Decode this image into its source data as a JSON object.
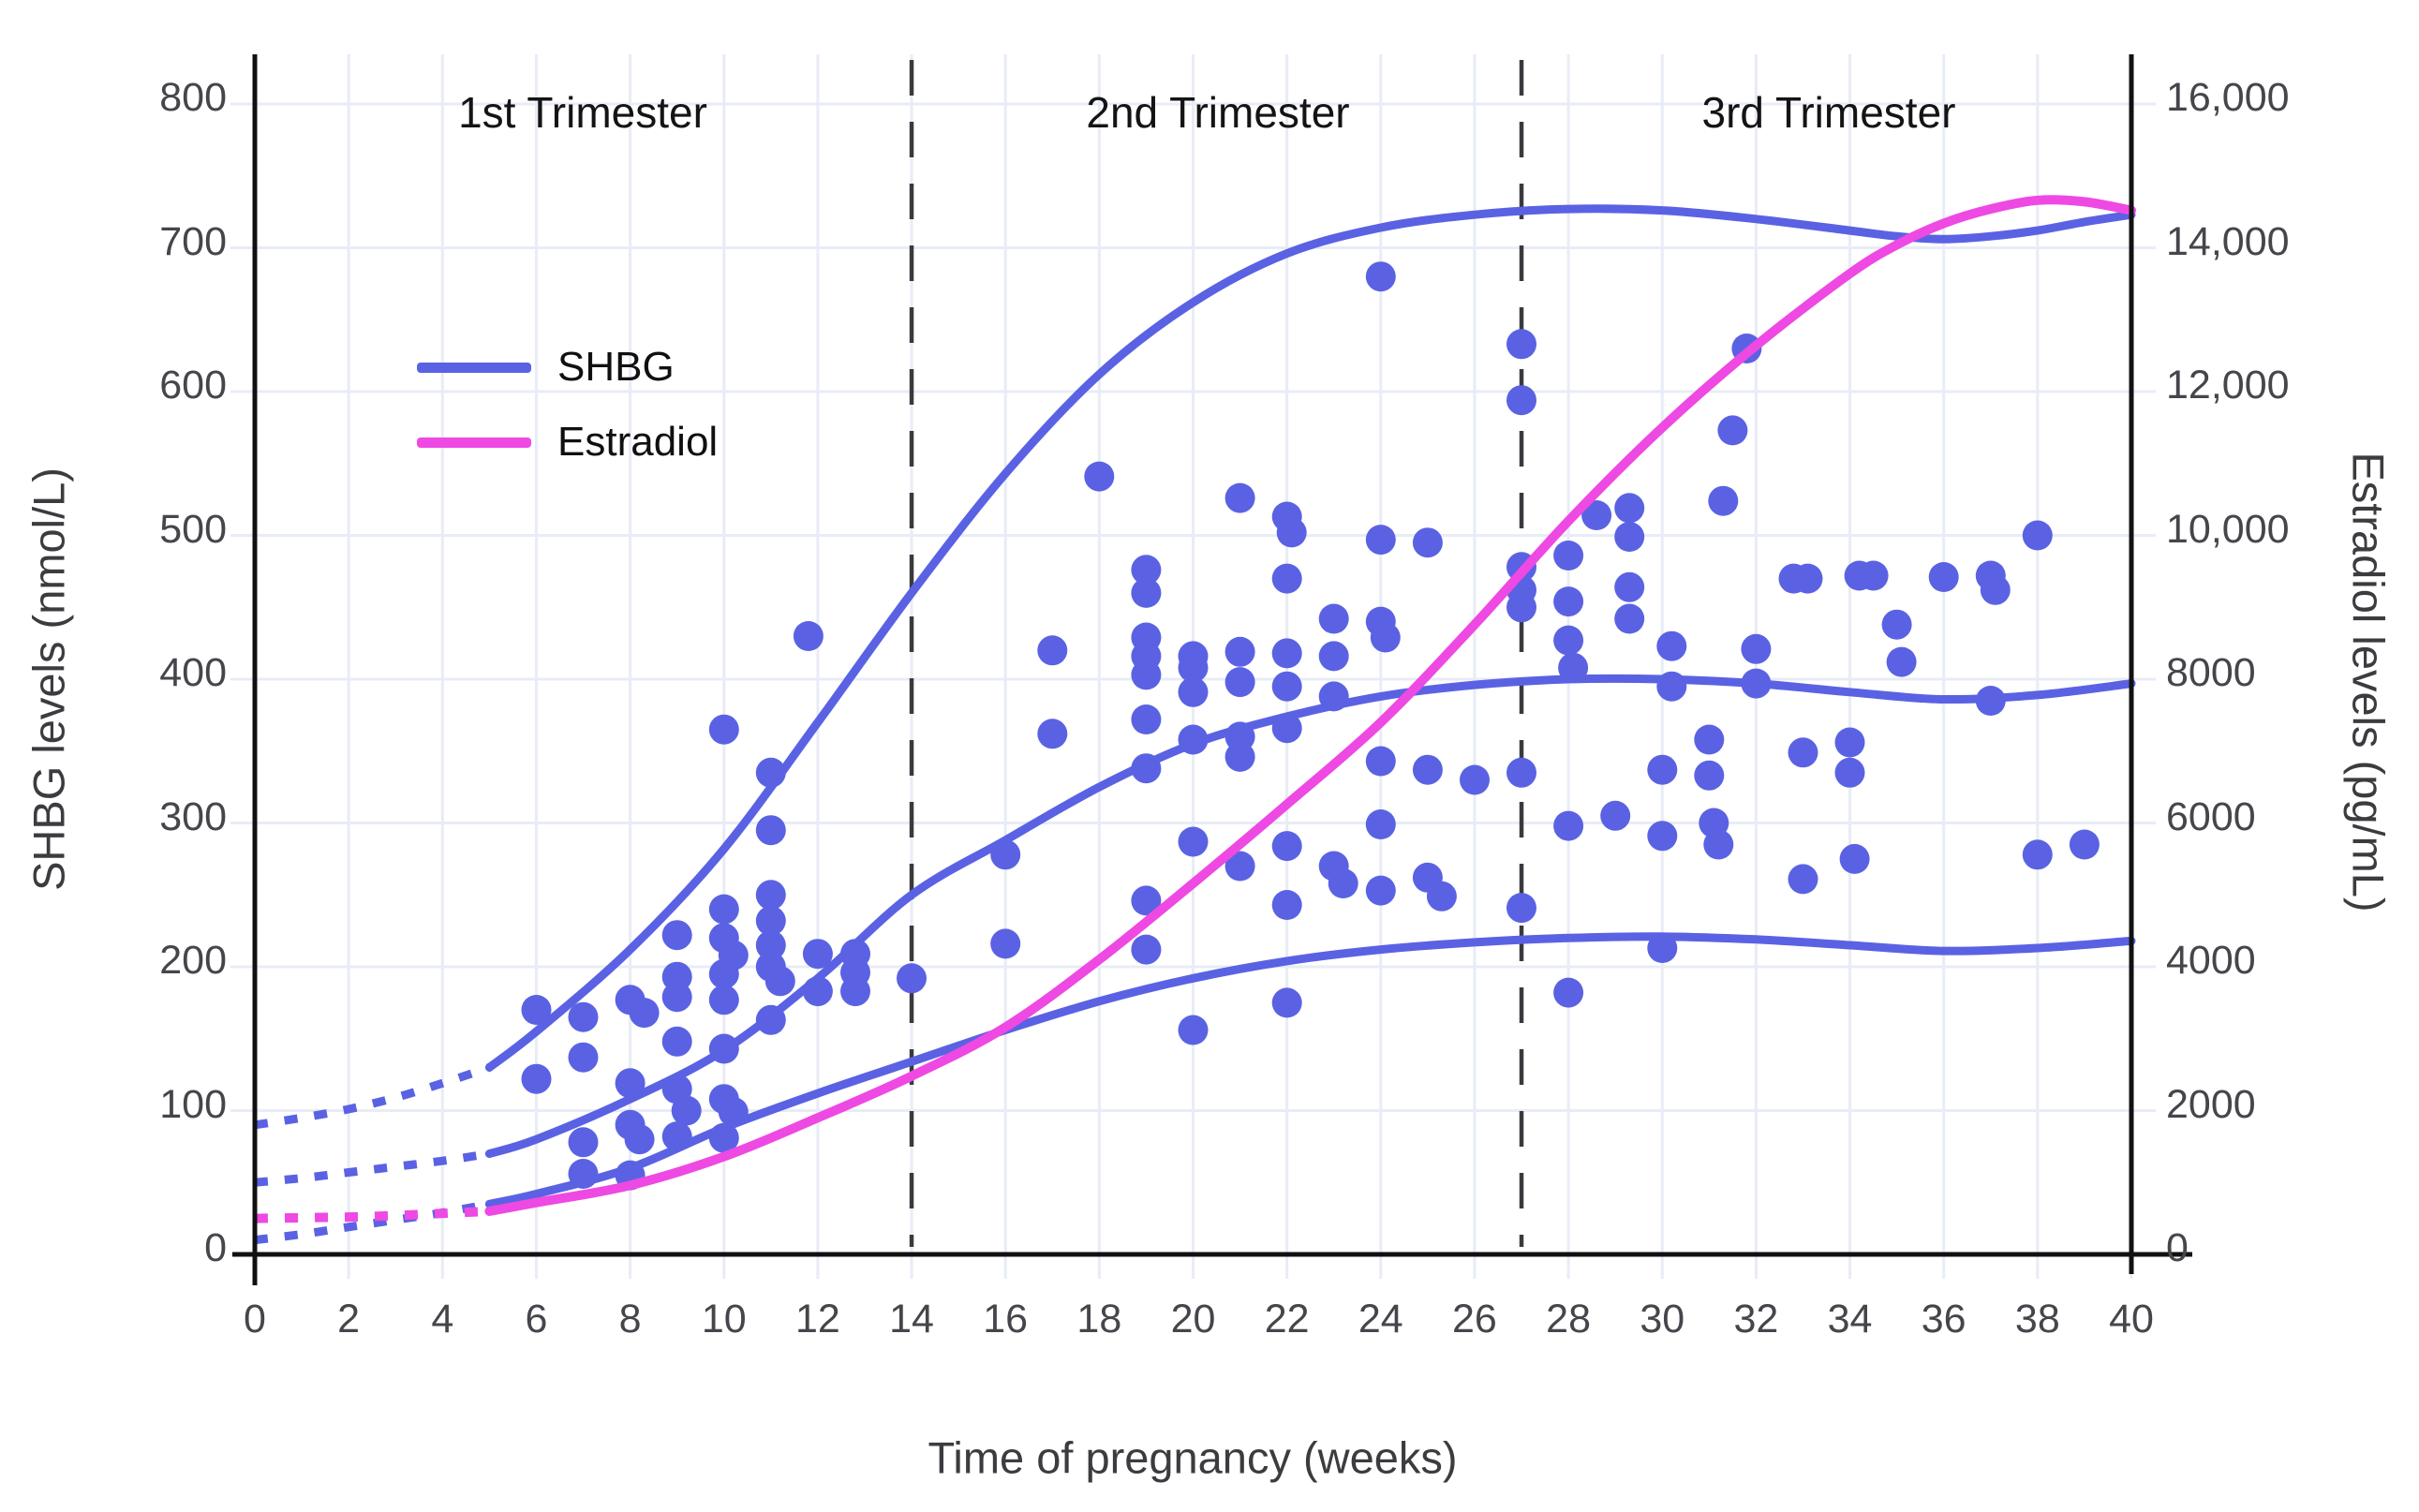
{
  "chart_data": {
    "type": "scatter+line",
    "x_axis": {
      "label": "Time of pregnancy (weeks)",
      "min": 0,
      "max": 40,
      "tick_step": 2,
      "tick_labels": [
        "0",
        "2",
        "4",
        "6",
        "8",
        "10",
        "12",
        "14",
        "16",
        "18",
        "20",
        "22",
        "24",
        "26",
        "28",
        "30",
        "32",
        "34",
        "36",
        "38",
        "40"
      ]
    },
    "y_axis_left": {
      "label": "SHBG levels (nmol/L)",
      "min": 0,
      "max": 800,
      "tick_step": 100,
      "tick_labels": [
        "0",
        "100",
        "200",
        "300",
        "400",
        "500",
        "600",
        "700",
        "800"
      ]
    },
    "y_axis_right": {
      "label": "Estradiol levels (pg/mL)",
      "min": 0,
      "max": 16000,
      "tick_step": 2000,
      "tick_labels": [
        "0",
        "2000",
        "4000",
        "6000",
        "8000",
        "10,000",
        "12,000",
        "14,000",
        "16,000"
      ],
      "pgml_per_nmoll": 20
    },
    "annotations": {
      "trimester_divider_weeks": [
        14,
        27
      ],
      "trimesters": [
        {
          "label": "1st Trimester",
          "center_week": 7
        },
        {
          "label": "2nd Trimester",
          "center_week": 20.5
        },
        {
          "label": "3rd Trimester",
          "center_week": 33.5
        }
      ]
    },
    "legend": [
      {
        "label": "SHBG",
        "color": "#5A62E3"
      },
      {
        "label": "Estradiol",
        "color": "#EE49E3"
      }
    ],
    "colors": {
      "shbg": "#5A62E3",
      "estradiol": "#EE49E3",
      "grid": "#E8ECF6",
      "axis": "#111111",
      "dashed_divider": "#3A3A3E",
      "tick_text": "#45454B",
      "title_text": "#3C3C40"
    },
    "series": [
      {
        "name": "SHBG upper reference limit",
        "axis": "left",
        "unit": "nmol/L",
        "color": "#5A62E3",
        "dotted_points": [
          [
            0,
            90
          ],
          [
            1,
            95
          ],
          [
            2,
            101
          ],
          [
            3,
            109
          ],
          [
            4,
            119
          ],
          [
            5,
            130
          ]
        ],
        "points": [
          [
            5,
            130
          ],
          [
            6,
            155
          ],
          [
            8,
            212
          ],
          [
            10,
            282
          ],
          [
            12,
            370
          ],
          [
            14,
            460
          ],
          [
            16,
            543
          ],
          [
            18,
            612
          ],
          [
            20,
            662
          ],
          [
            22,
            696
          ],
          [
            24,
            714
          ],
          [
            26,
            723
          ],
          [
            28,
            727
          ],
          [
            30,
            726
          ],
          [
            32,
            720
          ],
          [
            34,
            712
          ],
          [
            35,
            708
          ],
          [
            36,
            706
          ],
          [
            37,
            708
          ],
          [
            38,
            712
          ],
          [
            39,
            718
          ],
          [
            40,
            723
          ]
        ]
      },
      {
        "name": "SHBG median",
        "axis": "left",
        "unit": "nmol/L",
        "color": "#5A62E3",
        "dotted_points": [
          [
            0,
            50
          ],
          [
            1,
            53
          ],
          [
            2,
            57
          ],
          [
            3,
            61
          ],
          [
            4,
            65
          ],
          [
            5,
            70
          ]
        ],
        "points": [
          [
            5,
            70
          ],
          [
            6,
            80
          ],
          [
            8,
            108
          ],
          [
            10,
            142
          ],
          [
            12,
            192
          ],
          [
            14,
            250
          ],
          [
            16,
            288
          ],
          [
            18,
            325
          ],
          [
            20,
            355
          ],
          [
            22,
            374
          ],
          [
            24,
            388
          ],
          [
            26,
            396
          ],
          [
            28,
            400
          ],
          [
            30,
            400
          ],
          [
            32,
            397
          ],
          [
            34,
            391
          ],
          [
            36,
            386
          ],
          [
            38,
            389
          ],
          [
            40,
            397
          ]
        ]
      },
      {
        "name": "SHBG lower reference limit",
        "axis": "left",
        "unit": "nmol/L",
        "color": "#5A62E3",
        "dotted_points": [
          [
            0,
            10
          ],
          [
            1,
            14
          ],
          [
            2,
            19
          ],
          [
            3,
            24
          ],
          [
            4,
            29
          ],
          [
            5,
            35
          ]
        ],
        "points": [
          [
            5,
            35
          ],
          [
            6,
            42
          ],
          [
            8,
            60
          ],
          [
            10,
            88
          ],
          [
            12,
            112
          ],
          [
            14,
            134
          ],
          [
            16,
            156
          ],
          [
            18,
            176
          ],
          [
            20,
            192
          ],
          [
            22,
            204
          ],
          [
            24,
            212
          ],
          [
            26,
            217
          ],
          [
            28,
            220
          ],
          [
            30,
            221
          ],
          [
            32,
            219
          ],
          [
            34,
            215
          ],
          [
            36,
            211
          ],
          [
            38,
            213
          ],
          [
            40,
            218
          ]
        ]
      },
      {
        "name": "Estradiol",
        "axis": "right",
        "unit": "pg/mL",
        "color": "#EE49E3",
        "dotted_points": [
          [
            0,
            500
          ],
          [
            1,
            510
          ],
          [
            2,
            520
          ],
          [
            3,
            540
          ],
          [
            4,
            570
          ],
          [
            5,
            600
          ]
        ],
        "points": [
          [
            5,
            600
          ],
          [
            6,
            720
          ],
          [
            8,
            960
          ],
          [
            10,
            1360
          ],
          [
            12,
            1900
          ],
          [
            14,
            2480
          ],
          [
            16,
            3160
          ],
          [
            18,
            4100
          ],
          [
            20,
            5160
          ],
          [
            22,
            6260
          ],
          [
            24,
            7400
          ],
          [
            26,
            8760
          ],
          [
            28,
            10200
          ],
          [
            30,
            11500
          ],
          [
            32,
            12640
          ],
          [
            34,
            13640
          ],
          [
            35,
            14040
          ],
          [
            36,
            14340
          ],
          [
            37,
            14540
          ],
          [
            38,
            14660
          ],
          [
            39,
            14640
          ],
          [
            40,
            14520
          ]
        ]
      }
    ],
    "scatter": {
      "name": "SHBG individual observations",
      "axis": "left",
      "unit": "nmol/L",
      "color": "#5A62E3",
      "points": [
        [
          6,
          170
        ],
        [
          6,
          122
        ],
        [
          7,
          165
        ],
        [
          7,
          137
        ],
        [
          7,
          78
        ],
        [
          7,
          56
        ],
        [
          8,
          177
        ],
        [
          8.3,
          168
        ],
        [
          8,
          119
        ],
        [
          8,
          90
        ],
        [
          8.2,
          80
        ],
        [
          8,
          55
        ],
        [
          9,
          222
        ],
        [
          9,
          193
        ],
        [
          9,
          179
        ],
        [
          9,
          148
        ],
        [
          9,
          115
        ],
        [
          9.2,
          100
        ],
        [
          9,
          82
        ],
        [
          10,
          365
        ],
        [
          10,
          240
        ],
        [
          10,
          220
        ],
        [
          10.2,
          208
        ],
        [
          10,
          195
        ],
        [
          10,
          177
        ],
        [
          10,
          143
        ],
        [
          10,
          108
        ],
        [
          10.2,
          99
        ],
        [
          10,
          81
        ],
        [
          11,
          335
        ],
        [
          11,
          295
        ],
        [
          11,
          250
        ],
        [
          11,
          232
        ],
        [
          11,
          215
        ],
        [
          11,
          200
        ],
        [
          11.2,
          190
        ],
        [
          11,
          163
        ],
        [
          11.8,
          430
        ],
        [
          12,
          209
        ],
        [
          12,
          183
        ],
        [
          12.8,
          209
        ],
        [
          12.8,
          196
        ],
        [
          12.8,
          183
        ],
        [
          14,
          192
        ],
        [
          16,
          278
        ],
        [
          16,
          216
        ],
        [
          17,
          420
        ],
        [
          17,
          362
        ],
        [
          18,
          541
        ],
        [
          19,
          476
        ],
        [
          19,
          460
        ],
        [
          19,
          429
        ],
        [
          19,
          416
        ],
        [
          19,
          403
        ],
        [
          19,
          372
        ],
        [
          19,
          338
        ],
        [
          19,
          246
        ],
        [
          19,
          212
        ],
        [
          20,
          416
        ],
        [
          20,
          408
        ],
        [
          20,
          391
        ],
        [
          20,
          358
        ],
        [
          20,
          287
        ],
        [
          20,
          156
        ],
        [
          21,
          526
        ],
        [
          21,
          419
        ],
        [
          21,
          398
        ],
        [
          21,
          360
        ],
        [
          21,
          346
        ],
        [
          21,
          270
        ],
        [
          22,
          513
        ],
        [
          22.1,
          502
        ],
        [
          22,
          470
        ],
        [
          22,
          418
        ],
        [
          22,
          395
        ],
        [
          22,
          366
        ],
        [
          22,
          284
        ],
        [
          22,
          243
        ],
        [
          22,
          175
        ],
        [
          23,
          442
        ],
        [
          23,
          416
        ],
        [
          23,
          388
        ],
        [
          23,
          270
        ],
        [
          23.2,
          258
        ],
        [
          24,
          680
        ],
        [
          24,
          497
        ],
        [
          24,
          440
        ],
        [
          24.1,
          429
        ],
        [
          24,
          343
        ],
        [
          24,
          299
        ],
        [
          24,
          253
        ],
        [
          25,
          495
        ],
        [
          25,
          337
        ],
        [
          25,
          262
        ],
        [
          25.3,
          249
        ],
        [
          26,
          330
        ],
        [
          27,
          633
        ],
        [
          27,
          594
        ],
        [
          27,
          478
        ],
        [
          27,
          462
        ],
        [
          27,
          450
        ],
        [
          27,
          335
        ],
        [
          27,
          241
        ],
        [
          28,
          486
        ],
        [
          28,
          454
        ],
        [
          28,
          427
        ],
        [
          28.1,
          408
        ],
        [
          28,
          298
        ],
        [
          28,
          182
        ],
        [
          28.6,
          514
        ],
        [
          29.3,
          519
        ],
        [
          29.3,
          499
        ],
        [
          29.3,
          464
        ],
        [
          29.3,
          442
        ],
        [
          29,
          305
        ],
        [
          30.2,
          423
        ],
        [
          30.2,
          395
        ],
        [
          30,
          337
        ],
        [
          30,
          291
        ],
        [
          30,
          213
        ],
        [
          31,
          358
        ],
        [
          31,
          333
        ],
        [
          31.1,
          300
        ],
        [
          31.2,
          285
        ],
        [
          31.3,
          524
        ],
        [
          31.5,
          573
        ],
        [
          31.8,
          630
        ],
        [
          32,
          421
        ],
        [
          32,
          397
        ],
        [
          32.8,
          470
        ],
        [
          33.1,
          470
        ],
        [
          33,
          349
        ],
        [
          33,
          261
        ],
        [
          34,
          356
        ],
        [
          34,
          335
        ],
        [
          34.1,
          275
        ],
        [
          34.2,
          472
        ],
        [
          34.5,
          472
        ],
        [
          35,
          438
        ],
        [
          35.1,
          412
        ],
        [
          36,
          471
        ],
        [
          37,
          472
        ],
        [
          37.1,
          462
        ],
        [
          37,
          385
        ],
        [
          38,
          500
        ],
        [
          38,
          278
        ],
        [
          39,
          285
        ]
      ]
    }
  }
}
